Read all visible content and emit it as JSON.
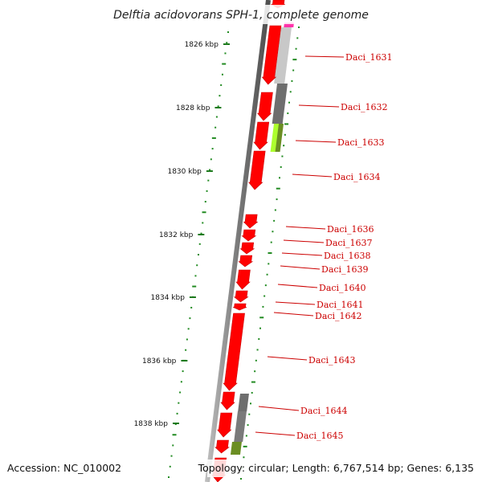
{
  "title": "Delftia acidovorans SPH-1, complete genome",
  "footer": {
    "accession": "Accession: NC_010002",
    "topology": "Topology: circular; Length: 6,767,514 bp; Genes: 6,135"
  },
  "ruler_ticks": [
    "1826 kbp",
    "1828 kbp",
    "1830 kbp",
    "1832 kbp",
    "1834 kbp",
    "1836 kbp",
    "1838 kbp"
  ],
  "gene_labels": [
    "Daci_1631",
    "Daci_1632",
    "Daci_1633",
    "Daci_1634",
    "Daci_1636",
    "Daci_1637",
    "Daci_1638",
    "Daci_1639",
    "Daci_1640",
    "Daci_1641",
    "Daci_1642",
    "Daci_1643",
    "Daci_1644",
    "Daci_1645"
  ],
  "colors": {
    "gene": "#ff0000",
    "gene_dark": "#cc0000",
    "backbone": "#8a8a8a",
    "gc_marks": "#228b22",
    "label": "#cc0000",
    "bar_light": "#c8c8c8",
    "bar_dark": "#6e6e6e",
    "bar_lime": "#adff2f",
    "bar_olive": "#6b8e23",
    "bar_magenta": "#ff33aa"
  }
}
